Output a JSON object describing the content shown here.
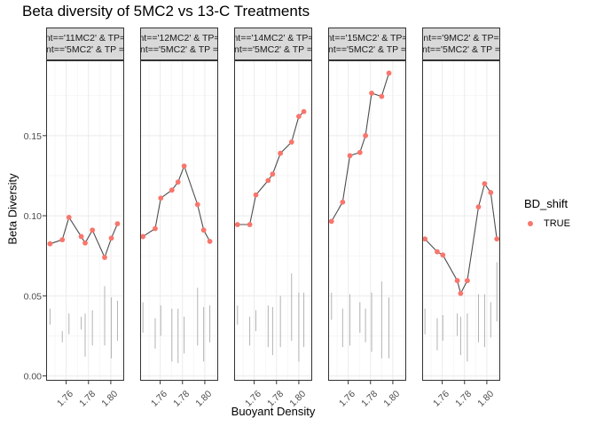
{
  "colors": {
    "point": "#F8766D",
    "line": "#4d4d4d",
    "error_bar": "#b3b3b3",
    "strip_bg": "#d9d9d9",
    "grid": "#ebebeb"
  },
  "chart_data": {
    "type": "line",
    "title": "Beta diversity of 5MC2 vs 13-C Treatments",
    "xlabel": "Buoyant Density",
    "ylabel": "Beta Diversity",
    "ylim": [
      -0.003,
      0.197
    ],
    "y_ticks": [
      "0.00",
      "0.05",
      "0.10",
      "0.15"
    ],
    "x_ticks": [
      "1.76",
      "1.78",
      "1.80"
    ],
    "grid": true,
    "legend": {
      "title": "BD_shift",
      "position": "right",
      "entries": [
        "TRUE"
      ]
    },
    "panels": [
      {
        "strip_line1": "nt=='11MC2' & TP=",
        "strip_line2": "nt=='5MC2' & TP =",
        "xlim": [
          1.742,
          1.812
        ],
        "points": [
          [
            1.7455,
            0.0825
          ],
          [
            1.7565,
            0.085
          ],
          [
            1.7625,
            0.099
          ],
          [
            1.7735,
            0.087
          ],
          [
            1.777,
            0.083
          ],
          [
            1.7835,
            0.091
          ],
          [
            1.7945,
            0.074
          ],
          [
            1.8005,
            0.086
          ],
          [
            1.806,
            0.095
          ]
        ],
        "error_bars": [
          [
            1.7455,
            0.032,
            0.042
          ],
          [
            1.7565,
            0.021,
            0.028
          ],
          [
            1.7625,
            0.026,
            0.039
          ],
          [
            1.7735,
            0.029,
            0.037
          ],
          [
            1.777,
            0.012,
            0.039
          ],
          [
            1.7835,
            0.019,
            0.041
          ],
          [
            1.7945,
            0.019,
            0.056
          ],
          [
            1.8005,
            0.011,
            0.049
          ],
          [
            1.806,
            0.022,
            0.047
          ]
        ]
      },
      {
        "strip_line1": "nt=='12MC2' & TP=",
        "strip_line2": "nt=='5MC2' & TP =",
        "xlim": [
          1.742,
          1.812
        ],
        "points": [
          [
            1.7445,
            0.087
          ],
          [
            1.7555,
            0.092
          ],
          [
            1.7605,
            0.111
          ],
          [
            1.7705,
            0.116
          ],
          [
            1.776,
            0.121
          ],
          [
            1.7815,
            0.131
          ],
          [
            1.7935,
            0.107
          ],
          [
            1.799,
            0.091
          ],
          [
            1.8045,
            0.084
          ]
        ],
        "error_bars": [
          [
            1.7445,
            0.027,
            0.046
          ],
          [
            1.7555,
            0.017,
            0.036
          ],
          [
            1.7605,
            0.025,
            0.044
          ],
          [
            1.7705,
            0.009,
            0.042
          ],
          [
            1.776,
            0.008,
            0.042
          ],
          [
            1.7815,
            0.014,
            0.037
          ],
          [
            1.7935,
            0.019,
            0.055
          ],
          [
            1.799,
            0.009,
            0.043
          ],
          [
            1.8045,
            0.021,
            0.044
          ]
        ]
      },
      {
        "strip_line1": "nt=='14MC2' & TP=",
        "strip_line2": "nt=='5MC2' & TP =",
        "xlim": [
          1.742,
          1.812
        ],
        "points": [
          [
            1.745,
            0.0945
          ],
          [
            1.756,
            0.0945
          ],
          [
            1.7615,
            0.113
          ],
          [
            1.7725,
            0.122
          ],
          [
            1.7765,
            0.126
          ],
          [
            1.7835,
            0.139
          ],
          [
            1.7935,
            0.146
          ],
          [
            1.8,
            0.162
          ],
          [
            1.8045,
            0.165
          ]
        ],
        "error_bars": [
          [
            1.745,
            0.032,
            0.044
          ],
          [
            1.756,
            0.019,
            0.037
          ],
          [
            1.7615,
            0.028,
            0.041
          ],
          [
            1.7725,
            0.018,
            0.044
          ],
          [
            1.7765,
            0.013,
            0.043
          ],
          [
            1.7835,
            0.018,
            0.05
          ],
          [
            1.7935,
            0.022,
            0.064
          ],
          [
            1.8,
            0.009,
            0.052
          ],
          [
            1.8045,
            0.018,
            0.052
          ]
        ]
      },
      {
        "strip_line1": "nt=='15MC2' & TP=",
        "strip_line2": "nt=='5MC2' & TP =",
        "xlim": [
          1.742,
          1.812
        ],
        "points": [
          [
            1.745,
            0.0965
          ],
          [
            1.755,
            0.1085
          ],
          [
            1.7615,
            0.1375
          ],
          [
            1.7705,
            0.1395
          ],
          [
            1.7755,
            0.15
          ],
          [
            1.781,
            0.1765
          ],
          [
            1.79,
            0.1745
          ],
          [
            1.7965,
            0.189
          ]
        ],
        "error_bars": [
          [
            1.745,
            0.035,
            0.052
          ],
          [
            1.755,
            0.018,
            0.042
          ],
          [
            1.7615,
            0.019,
            0.051
          ],
          [
            1.7705,
            0.027,
            0.046
          ],
          [
            1.7755,
            0.021,
            0.042
          ],
          [
            1.781,
            0.015,
            0.052
          ],
          [
            1.79,
            0.011,
            0.059
          ],
          [
            1.7965,
            0.011,
            0.049
          ]
        ]
      },
      {
        "strip_line1": "nt=='9MC2' & TP=",
        "strip_line2": "nt=='5MC2' & TP =",
        "xlim": [
          1.742,
          1.812
        ],
        "points": [
          [
            1.7445,
            0.0855
          ],
          [
            1.7555,
            0.0775
          ],
          [
            1.7605,
            0.0755
          ],
          [
            1.7735,
            0.0595
          ],
          [
            1.7765,
            0.0515
          ],
          [
            1.7825,
            0.0595
          ],
          [
            1.7925,
            0.1055
          ],
          [
            1.798,
            0.12
          ],
          [
            1.8035,
            0.1145
          ],
          [
            1.809,
            0.0855
          ]
        ],
        "error_bars": [
          [
            1.7445,
            0.026,
            0.042
          ],
          [
            1.7555,
            0.016,
            0.036
          ],
          [
            1.7605,
            0.022,
            0.038
          ],
          [
            1.7735,
            0.025,
            0.039
          ],
          [
            1.7765,
            0.013,
            0.037
          ],
          [
            1.7825,
            0.009,
            0.039
          ],
          [
            1.7925,
            0.021,
            0.051
          ],
          [
            1.798,
            0.018,
            0.051
          ],
          [
            1.8035,
            0.024,
            0.046
          ],
          [
            1.809,
            0.034,
            0.071
          ]
        ]
      }
    ]
  }
}
